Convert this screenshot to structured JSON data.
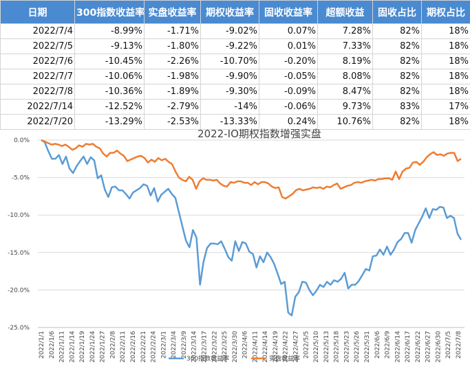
{
  "table": {
    "headers": [
      "日期",
      "300指数收益率",
      "实盘收益率",
      "期权收益率",
      "固收收益率",
      "超额收益",
      "固收占比",
      "期权占比"
    ],
    "rows": [
      [
        "2022/7/4",
        "-8.99%",
        "-1.71%",
        "-9.02%",
        "0.07%",
        "7.28%",
        "82%",
        "18%"
      ],
      [
        "2022/7/5",
        "-9.13%",
        "-1.80%",
        "-9.22%",
        "0.01%",
        "7.33%",
        "82%",
        "18%"
      ],
      [
        "2022/7/6",
        "-10.45%",
        "-2.26%",
        "-10.70%",
        "-0.20%",
        "8.19%",
        "82%",
        "18%"
      ],
      [
        "2022/7/7",
        "-10.06%",
        "-1.98%",
        "-9.90%",
        "-0.05%",
        "8.08%",
        "82%",
        "18%"
      ],
      [
        "2022/7/8",
        "-10.36%",
        "-1.89%",
        "-9.30%",
        "-0.09%",
        "8.47%",
        "82%",
        "18%"
      ],
      [
        "2022/7/14",
        "-12.52%",
        "-2.79%",
        "-14%",
        "-0.06%",
        "9.73%",
        "83%",
        "17%"
      ],
      [
        "2022/7/20",
        "-13.29%",
        "-2.53%",
        "-13.33%",
        "0.24%",
        "10.76%",
        "82%",
        "18%"
      ]
    ]
  },
  "chart_data": {
    "type": "line",
    "title": "2022-IO期权指数增强实盘",
    "x_ticks": [
      "2022/1/1",
      "2022/1/6",
      "2022/1/11",
      "2022/1/14",
      "2022/1/19",
      "2022/1/24",
      "2022/1/27",
      "2022/2/8",
      "2022/2/11",
      "2022/2/16",
      "2022/2/21",
      "2022/2/24",
      "2022/3/1",
      "2022/3/4",
      "2022/3/9",
      "2022/3/14",
      "2022/3/17",
      "2022/3/22",
      "2022/3/25",
      "2022/3/30",
      "2022/4/6",
      "2022/4/11",
      "2022/4/14",
      "2022/4/19",
      "2022/4/22",
      "2022/4/27",
      "2022/5/5",
      "2022/5/10",
      "2022/5/13",
      "2022/5/18",
      "2022/5/23",
      "2022/5/26",
      "2022/5/31",
      "2022/6/6",
      "2022/6/9",
      "2022/6/14",
      "2022/6/17",
      "2022/6/22",
      "2022/6/27",
      "2022/6/30",
      "2022/7/5",
      "2022/7/8"
    ],
    "y_ticks": [
      "0.0%",
      "-5.0%",
      "-10.0%",
      "-15.0%",
      "-20.0%",
      "-25.0%"
    ],
    "ylim": [
      -25,
      0
    ],
    "series": [
      {
        "name": "300指数收益率",
        "color": "#5b9bd5",
        "values": [
          0,
          -0.3,
          -1.5,
          -2.5,
          -2.5,
          -2.0,
          -3.2,
          -2.2,
          -3.8,
          -4.4,
          -3.5,
          -2.8,
          -2.2,
          -3.2,
          -2.3,
          -2.7,
          -5.1,
          -4.7,
          -6.6,
          -7.6,
          -6.3,
          -6.2,
          -6.7,
          -6.7,
          -7.2,
          -7.8,
          -7.0,
          -6.7,
          -6.4,
          -5.9,
          -6.1,
          -7.4,
          -6.4,
          -8.2,
          -7.3,
          -6.9,
          -6.5,
          -7.2,
          -7.7,
          -9.6,
          -11.5,
          -13.4,
          -14.3,
          -12.0,
          -13.0,
          -19.3,
          -16.2,
          -14.4,
          -13.8,
          -13.8,
          -13.9,
          -13.5,
          -14.5,
          -15.6,
          -16.1,
          -13.5,
          -14.8,
          -13.6,
          -13.8,
          -14.9,
          -15.2,
          -17.0,
          -15.5,
          -16.3,
          -15.0,
          -15.6,
          -16.5,
          -17.8,
          -19.2,
          -18.9,
          -23.0,
          -23.4,
          -20.9,
          -20.3,
          -18.9,
          -19.0,
          -20.0,
          -20.7,
          -20.1,
          -19.3,
          -19.6,
          -18.9,
          -19.3,
          -18.7,
          -18.9,
          -18.5,
          -17.7,
          -19.8,
          -19.3,
          -19.3,
          -18.8,
          -18.0,
          -17.2,
          -17.4,
          -15.5,
          -15.4,
          -14.6,
          -15.3,
          -14.2,
          -15.3,
          -14.6,
          -13.6,
          -13.2,
          -12.4,
          -12.4,
          -13.7,
          -12.0,
          -11.1,
          -10.2,
          -9.1,
          -10.4,
          -9.2,
          -9.3,
          -8.9,
          -9.0,
          -10.4,
          -10.1,
          -10.4,
          -12.5,
          -13.3
        ]
      },
      {
        "name": "实盘收益率",
        "color": "#ed7d31",
        "values": [
          0,
          -0.2,
          -0.4,
          -0.6,
          -0.5,
          -0.6,
          -0.8,
          -0.6,
          -0.9,
          -1.3,
          -1.1,
          -0.7,
          -0.9,
          -0.5,
          -0.6,
          -0.5,
          -0.9,
          -1.1,
          -1.8,
          -2.2,
          -1.7,
          -1.7,
          -1.4,
          -1.8,
          -2.1,
          -2.8,
          -2.6,
          -2.4,
          -2.2,
          -2.1,
          -2.4,
          -3.0,
          -2.6,
          -2.9,
          -2.4,
          -2.7,
          -2.5,
          -2.9,
          -3.2,
          -4.2,
          -5.0,
          -5.3,
          -5.5,
          -4.9,
          -5.3,
          -6.5,
          -5.5,
          -5.1,
          -5.3,
          -5.3,
          -5.4,
          -5.3,
          -5.8,
          -6.1,
          -6.2,
          -5.6,
          -5.7,
          -5.5,
          -5.5,
          -5.7,
          -5.7,
          -6.0,
          -5.6,
          -5.9,
          -5.6,
          -5.6,
          -5.8,
          -6.2,
          -6.4,
          -6.3,
          -7.6,
          -7.8,
          -7.5,
          -7.2,
          -6.7,
          -6.5,
          -6.7,
          -6.6,
          -6.5,
          -6.3,
          -6.4,
          -6.3,
          -6.5,
          -6.2,
          -6.3,
          -6.0,
          -5.8,
          -6.5,
          -6.3,
          -6.1,
          -6.0,
          -5.7,
          -5.6,
          -5.7,
          -5.5,
          -5.4,
          -5.3,
          -5.4,
          -5.2,
          -5.2,
          -5.1,
          -5.1,
          -5.3,
          -4.2,
          -5.2,
          -4.2,
          -3.8,
          -3.7,
          -3.0,
          -2.9,
          -3.3,
          -2.9,
          -2.3,
          -1.9,
          -1.6,
          -2.0,
          -1.9,
          -2.1,
          -1.8,
          -1.7,
          -1.7,
          -2.8,
          -2.5
        ]
      }
    ],
    "legend": "bottom"
  }
}
